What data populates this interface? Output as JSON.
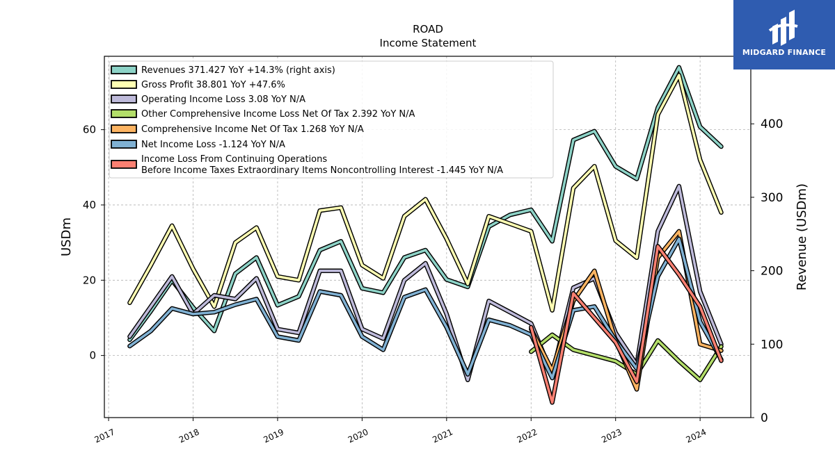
{
  "chart_data": {
    "type": "line",
    "title": "ROAD",
    "subtitle": "Income Statement",
    "ylabel": "USDm",
    "y2label": "Revenue (USDm)",
    "ylim": [
      -16.5,
      79.5
    ],
    "y2lim": [
      0,
      492
    ],
    "xlim": [
      2016.95,
      2024.6
    ],
    "yticks": [
      0,
      20,
      40,
      60
    ],
    "y2ticks": [
      0,
      100,
      200,
      300,
      400
    ],
    "xticks": [
      {
        "value": 2017,
        "label": "2017"
      },
      {
        "value": 2018,
        "label": "2018"
      },
      {
        "value": 2019,
        "label": "2019"
      },
      {
        "value": 2020,
        "label": "2020"
      },
      {
        "value": 2021,
        "label": "2021"
      },
      {
        "value": 2022,
        "label": "2022"
      },
      {
        "value": 2023,
        "label": "2023"
      },
      {
        "value": 2024,
        "label": "2024"
      }
    ],
    "grid": true,
    "legend_position": "top-left",
    "series": [
      {
        "name": "Revenues  371.427 YoY +14.3% (right axis)",
        "color": "#8dd3c7",
        "axis": "right",
        "points": [
          [
            2017.25,
            106
          ],
          [
            2017.5,
            145
          ],
          [
            2017.75,
            187
          ],
          [
            2018.0,
            150
          ],
          [
            2018.25,
            118
          ],
          [
            2018.5,
            196
          ],
          [
            2018.75,
            218
          ],
          [
            2019.0,
            153
          ],
          [
            2019.25,
            165
          ],
          [
            2019.5,
            228
          ],
          [
            2019.75,
            240
          ],
          [
            2020.0,
            176
          ],
          [
            2020.25,
            170
          ],
          [
            2020.5,
            218
          ],
          [
            2020.75,
            228
          ],
          [
            2021.0,
            188
          ],
          [
            2021.25,
            178
          ],
          [
            2021.5,
            260
          ],
          [
            2021.75,
            276
          ],
          [
            2022.0,
            283
          ],
          [
            2022.25,
            240
          ],
          [
            2022.5,
            378
          ],
          [
            2022.75,
            390
          ],
          [
            2023.0,
            342
          ],
          [
            2023.25,
            325
          ],
          [
            2023.5,
            422
          ],
          [
            2023.75,
            477
          ],
          [
            2024.0,
            396
          ],
          [
            2024.25,
            369
          ]
        ]
      },
      {
        "name": "Gross Profit  38.801 YoY +47.6%",
        "color": "#ffffb3",
        "axis": "left",
        "points": [
          [
            2017.25,
            14
          ],
          [
            2017.5,
            24
          ],
          [
            2017.75,
            34.5
          ],
          [
            2018.0,
            23
          ],
          [
            2018.25,
            13
          ],
          [
            2018.5,
            30
          ],
          [
            2018.75,
            34
          ],
          [
            2019.0,
            21
          ],
          [
            2019.25,
            20
          ],
          [
            2019.5,
            38.5
          ],
          [
            2019.75,
            39.3
          ],
          [
            2020.0,
            24
          ],
          [
            2020.25,
            20.5
          ],
          [
            2020.5,
            37
          ],
          [
            2020.75,
            41.5
          ],
          [
            2021.0,
            31
          ],
          [
            2021.25,
            19
          ],
          [
            2021.5,
            37
          ],
          [
            2021.75,
            35
          ],
          [
            2022.0,
            33
          ],
          [
            2022.25,
            12
          ],
          [
            2022.5,
            44.5
          ],
          [
            2022.75,
            50.3
          ],
          [
            2023.0,
            30.5
          ],
          [
            2023.25,
            26
          ],
          [
            2023.5,
            64
          ],
          [
            2023.75,
            74.5
          ],
          [
            2024.0,
            52
          ],
          [
            2024.25,
            38
          ]
        ]
      },
      {
        "name": "Operating Income Loss  3.08 YoY N/A",
        "color": "#bebada",
        "axis": "left",
        "points": [
          [
            2017.25,
            5
          ],
          [
            2017.5,
            13
          ],
          [
            2017.75,
            21
          ],
          [
            2018.0,
            11
          ],
          [
            2018.25,
            16
          ],
          [
            2018.5,
            15
          ],
          [
            2018.75,
            20.5
          ],
          [
            2019.0,
            7
          ],
          [
            2019.25,
            6
          ],
          [
            2019.5,
            22.5
          ],
          [
            2019.75,
            22.5
          ],
          [
            2020.0,
            7
          ],
          [
            2020.25,
            4.5
          ],
          [
            2020.5,
            20
          ],
          [
            2020.75,
            24.5
          ],
          [
            2021.0,
            11
          ],
          [
            2021.25,
            -6.5
          ],
          [
            2021.5,
            14.5
          ],
          [
            2021.75,
            11.5
          ],
          [
            2022.0,
            8.5
          ],
          [
            2022.25,
            -5
          ],
          [
            2022.5,
            18
          ],
          [
            2022.75,
            20.5
          ],
          [
            2023.0,
            6
          ],
          [
            2023.25,
            -2.5
          ],
          [
            2023.5,
            33
          ],
          [
            2023.75,
            45
          ],
          [
            2024.0,
            17
          ],
          [
            2024.25,
            3
          ]
        ]
      },
      {
        "name": "Other Comprehensive Income Loss Net Of Tax  2.392 YoY N/A",
        "color": "#b3de69",
        "axis": "left",
        "points": [
          [
            2022.0,
            1
          ],
          [
            2022.25,
            5.5
          ],
          [
            2022.5,
            1.5
          ],
          [
            2022.75,
            0
          ],
          [
            2023.0,
            -1.5
          ],
          [
            2023.25,
            -5
          ],
          [
            2023.5,
            4
          ],
          [
            2023.75,
            -1.5
          ],
          [
            2024.0,
            -6.5
          ],
          [
            2024.25,
            2.4
          ]
        ]
      },
      {
        "name": "Comprehensive Income Net Of Tax  1.268 YoY N/A",
        "color": "#fdb462",
        "axis": "left",
        "points": [
          [
            2022.0,
            7
          ],
          [
            2022.25,
            -4
          ],
          [
            2022.5,
            14.5
          ],
          [
            2022.75,
            22.5
          ],
          [
            2023.0,
            4
          ],
          [
            2023.25,
            -9
          ],
          [
            2023.5,
            26
          ],
          [
            2023.75,
            33
          ],
          [
            2024.0,
            3
          ],
          [
            2024.25,
            1.3
          ]
        ]
      },
      {
        "name": "Net Income Loss  -1.124 YoY N/A",
        "color": "#80b1d3",
        "axis": "left",
        "points": [
          [
            2017.25,
            2.5
          ],
          [
            2017.5,
            6.5
          ],
          [
            2017.75,
            12.5
          ],
          [
            2018.0,
            11
          ],
          [
            2018.25,
            11.5
          ],
          [
            2018.5,
            13.5
          ],
          [
            2018.75,
            15
          ],
          [
            2019.0,
            5
          ],
          [
            2019.25,
            4
          ],
          [
            2019.5,
            17
          ],
          [
            2019.75,
            16
          ],
          [
            2020.0,
            5
          ],
          [
            2020.25,
            1.5
          ],
          [
            2020.5,
            15.5
          ],
          [
            2020.75,
            17.5
          ],
          [
            2021.0,
            7.5
          ],
          [
            2021.25,
            -5
          ],
          [
            2021.5,
            9.5
          ],
          [
            2021.75,
            8
          ],
          [
            2022.0,
            5.5
          ],
          [
            2022.25,
            -6
          ],
          [
            2022.5,
            12
          ],
          [
            2022.75,
            13
          ],
          [
            2023.0,
            4
          ],
          [
            2023.25,
            -3.5
          ],
          [
            2023.5,
            21
          ],
          [
            2023.75,
            31
          ],
          [
            2024.0,
            9
          ],
          [
            2024.25,
            -1.1
          ]
        ]
      },
      {
        "name": "Income Loss From Continuing Operations\nBefore Income Taxes Extraordinary Items Noncontrolling Interest  -1.445 YoY N/A",
        "color": "#fb8072",
        "axis": "left",
        "points": [
          [
            2022.0,
            7.5
          ],
          [
            2022.25,
            -12.5
          ],
          [
            2022.5,
            16.5
          ],
          [
            2022.75,
            10
          ],
          [
            2023.0,
            3.5
          ],
          [
            2023.25,
            -7
          ],
          [
            2023.5,
            29
          ],
          [
            2023.75,
            21.5
          ],
          [
            2024.0,
            13
          ],
          [
            2024.25,
            -1.4
          ]
        ]
      }
    ]
  }
}
